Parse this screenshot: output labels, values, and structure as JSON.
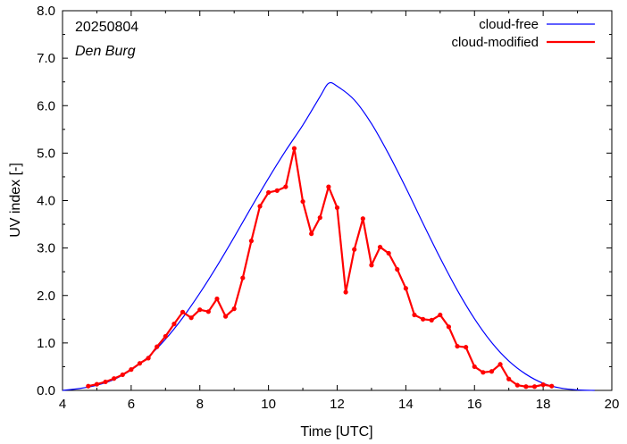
{
  "chart_data": {
    "type": "line",
    "title": "",
    "xlabel": "Time  [UTC]",
    "ylabel": "UV index  [-]",
    "xlim": [
      4,
      20
    ],
    "ylim": [
      0,
      8
    ],
    "x_ticks": [
      4,
      6,
      8,
      10,
      12,
      14,
      16,
      18,
      20
    ],
    "y_ticks": [
      0.0,
      1.0,
      2.0,
      3.0,
      4.0,
      5.0,
      6.0,
      7.0,
      8.0
    ],
    "y_tick_labels": [
      "0.0",
      "1.0",
      "2.0",
      "3.0",
      "4.0",
      "5.0",
      "6.0",
      "7.0",
      "8.0"
    ],
    "grid": false,
    "legend_position": "top-right",
    "annotations": [
      "20250804",
      "Den Burg"
    ],
    "series": [
      {
        "name": "cloud-free",
        "color": "#0000ff",
        "style": "smooth-line",
        "peak_x": 11.75,
        "peak_y": 6.47,
        "start_x": 4.0,
        "end_x": 19.5,
        "x": [
          4.0,
          4.5,
          5.0,
          5.5,
          6.0,
          6.5,
          7.0,
          7.5,
          8.0,
          8.5,
          9.0,
          9.5,
          10.0,
          10.5,
          11.0,
          11.5,
          11.75,
          12.0,
          12.5,
          13.0,
          13.5,
          14.0,
          14.5,
          15.0,
          15.5,
          16.0,
          16.5,
          17.0,
          17.5,
          18.0,
          18.5,
          19.0,
          19.5
        ],
        "y": [
          0.0,
          0.04,
          0.11,
          0.23,
          0.43,
          0.71,
          1.08,
          1.53,
          2.05,
          2.62,
          3.23,
          3.86,
          4.47,
          5.05,
          5.59,
          6.19,
          6.47,
          6.41,
          6.12,
          5.62,
          4.98,
          4.27,
          3.52,
          2.79,
          2.11,
          1.51,
          1.01,
          0.62,
          0.34,
          0.15,
          0.05,
          0.01,
          0.0
        ]
      },
      {
        "name": "cloud-modified",
        "color": "#ff0000",
        "style": "line-with-points",
        "x": [
          4.75,
          5.0,
          5.25,
          5.5,
          5.75,
          6.0,
          6.25,
          6.5,
          6.75,
          7.0,
          7.25,
          7.5,
          7.75,
          8.0,
          8.25,
          8.5,
          8.75,
          9.0,
          9.25,
          9.5,
          9.75,
          10.0,
          10.25,
          10.5,
          10.75,
          11.0,
          11.25,
          11.5,
          11.75,
          12.0,
          12.25,
          12.5,
          12.75,
          13.0,
          13.25,
          13.5,
          13.75,
          14.0,
          14.25,
          14.5,
          14.75,
          15.0,
          15.25,
          15.5,
          15.75,
          16.0,
          16.25,
          16.5,
          16.75,
          17.0,
          17.25,
          17.5,
          17.75,
          18.0,
          18.25
        ],
        "y": [
          0.09,
          0.13,
          0.18,
          0.25,
          0.33,
          0.44,
          0.57,
          0.68,
          0.92,
          1.14,
          1.4,
          1.65,
          1.53,
          1.7,
          1.66,
          1.93,
          1.56,
          1.72,
          2.37,
          3.15,
          3.88,
          4.17,
          4.21,
          4.29,
          5.1,
          3.98,
          3.3,
          3.64,
          4.29,
          3.85,
          2.07,
          2.97,
          3.62,
          2.64,
          3.02,
          2.89,
          2.55,
          2.15,
          1.59,
          1.5,
          1.48,
          1.59,
          1.34,
          0.93,
          0.91,
          0.5,
          0.38,
          0.4,
          0.55,
          0.24,
          0.11,
          0.08,
          0.08,
          0.12,
          0.09
        ]
      }
    ]
  }
}
